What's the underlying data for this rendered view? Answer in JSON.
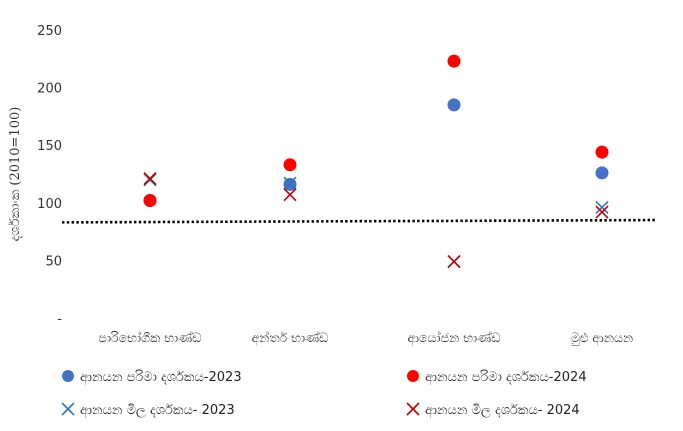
{
  "chart_data": {
    "type": "scatter",
    "ylabel": "දර්ශකාංක (2010=100)",
    "ylim": [
      0,
      250
    ],
    "yticks": [
      "-",
      "50",
      "100",
      "150",
      "200",
      "250"
    ],
    "categories": [
      "පාරිභෝගික භාණ්ඩ",
      "අන්තර් භාණ්ඩ",
      "ආයෝජන භාණ්ඩ",
      "මුළු ආනයන"
    ],
    "reference_line": 83,
    "series": [
      {
        "name": "ආනයන පරිමා දර්ශකය-2023",
        "marker": "circle",
        "color": "#4472C4",
        "values": [
          102,
          116,
          185,
          126
        ]
      },
      {
        "name": "ආනයන පරිමා දර්ශකය-2024",
        "marker": "circle",
        "color": "#FF0000",
        "values": [
          102,
          133,
          223,
          144
        ]
      },
      {
        "name": "ආනයන මිල දර්ශකය- 2023",
        "marker": "x",
        "color": "#2E75B6",
        "values": [
          120,
          117,
          49,
          96
        ]
      },
      {
        "name": "ආනයන මිල දර්ශකය- 2024",
        "marker": "x",
        "color": "#C00000",
        "values": [
          121,
          107,
          49,
          92
        ]
      }
    ]
  }
}
